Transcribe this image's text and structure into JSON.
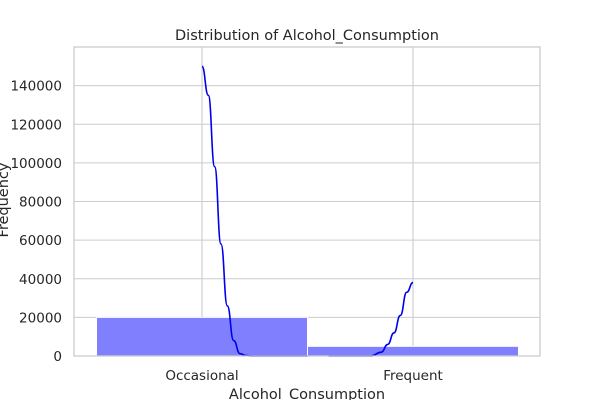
{
  "chart_data": {
    "type": "bar",
    "title": "Distribution of Alcohol_Consumption",
    "xlabel": "Alcohol_Consumption",
    "ylabel": "Frequency",
    "categories": [
      "Occasional",
      "Frequent"
    ],
    "values": [
      20000,
      5000
    ],
    "ylim": [
      0,
      160000
    ],
    "yticks": [
      0,
      20000,
      40000,
      60000,
      80000,
      100000,
      120000,
      140000
    ],
    "ytick_labels": [
      "0",
      "20000",
      "40000",
      "60000",
      "80000",
      "100000",
      "120000",
      "140000"
    ],
    "grid": true,
    "kde": {
      "x": [
        0.0,
        0.03,
        0.06,
        0.09,
        0.12,
        0.15,
        0.18,
        0.21,
        0.24,
        0.27,
        0.3,
        0.35,
        0.4,
        0.5,
        0.6,
        0.7,
        0.8,
        0.85,
        0.88,
        0.91,
        0.94,
        0.97,
        1.0
      ],
      "y": [
        150000,
        135000,
        98000,
        58000,
        26000,
        8000,
        1200,
        200,
        0,
        0,
        0,
        0,
        0,
        0,
        0,
        0,
        0,
        2000,
        6000,
        12000,
        21000,
        33000,
        38000
      ]
    },
    "colors": {
      "bar": "#8080ff",
      "kde": "#0000ee"
    }
  }
}
